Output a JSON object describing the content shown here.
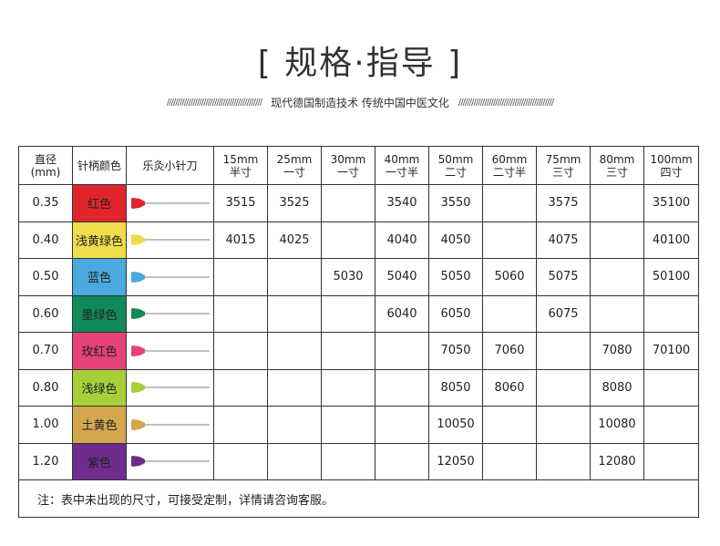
{
  "title": "[ 规格·指导 ]",
  "subtitle": {
    "slashes": "////////////////////////////////////////////",
    "text": "现代德国制造技术  传统中国中医文化"
  },
  "table": {
    "headers": [
      {
        "line1": "直径",
        "line2": "(mm)"
      },
      {
        "line1": "针柄颜色",
        "line2": ""
      },
      {
        "line1": "乐灸小针刀",
        "line2": ""
      },
      {
        "line1": "15mm",
        "line2": "半寸"
      },
      {
        "line1": "25mm",
        "line2": "一寸"
      },
      {
        "line1": "30mm",
        "line2": "一寸"
      },
      {
        "line1": "40mm",
        "line2": "一寸半"
      },
      {
        "line1": "50mm",
        "line2": "二寸"
      },
      {
        "line1": "60mm",
        "line2": "二寸半"
      },
      {
        "line1": "75mm",
        "line2": "三寸"
      },
      {
        "line1": "80mm",
        "line2": "三寸"
      },
      {
        "line1": "100mm",
        "line2": "四寸"
      }
    ],
    "rows": [
      {
        "diameter": "0.35",
        "color_name": "红色",
        "color": "#e0242b",
        "values": [
          "3515",
          "3525",
          "",
          "3540",
          "3550",
          "",
          "3575",
          "",
          "35100"
        ]
      },
      {
        "diameter": "0.40",
        "color_name": "浅黄绿色",
        "color": "#eedc4a",
        "values": [
          "4015",
          "4025",
          "",
          "4040",
          "4050",
          "",
          "4075",
          "",
          "40100"
        ]
      },
      {
        "diameter": "0.50",
        "color_name": "蓝色",
        "color": "#4aa9df",
        "values": [
          "",
          "",
          "5030",
          "5040",
          "5050",
          "5060",
          "5075",
          "",
          "50100"
        ]
      },
      {
        "diameter": "0.60",
        "color_name": "墨绿色",
        "color": "#0f8a58",
        "values": [
          "",
          "",
          "",
          "6040",
          "6050",
          "",
          "6075",
          "",
          ""
        ]
      },
      {
        "diameter": "0.70",
        "color_name": "玫红色",
        "color": "#e5417b",
        "values": [
          "",
          "",
          "",
          "",
          "7050",
          "7060",
          "",
          "7080",
          "70100"
        ]
      },
      {
        "diameter": "0.80",
        "color_name": "浅绿色",
        "color": "#a6cf3a",
        "values": [
          "",
          "",
          "",
          "",
          "8050",
          "8060",
          "",
          "8080",
          ""
        ]
      },
      {
        "diameter": "1.00",
        "color_name": "土黄色",
        "color": "#d2a74e",
        "values": [
          "",
          "",
          "",
          "",
          "10050",
          "",
          "",
          "10080",
          ""
        ]
      },
      {
        "diameter": "1.20",
        "color_name": "紫色",
        "color": "#6e2d8c",
        "values": [
          "",
          "",
          "",
          "",
          "12050",
          "",
          "",
          "12080",
          ""
        ]
      }
    ],
    "note": "注：表中未出现的尺寸，可接受定制，详情请咨询客服。"
  }
}
